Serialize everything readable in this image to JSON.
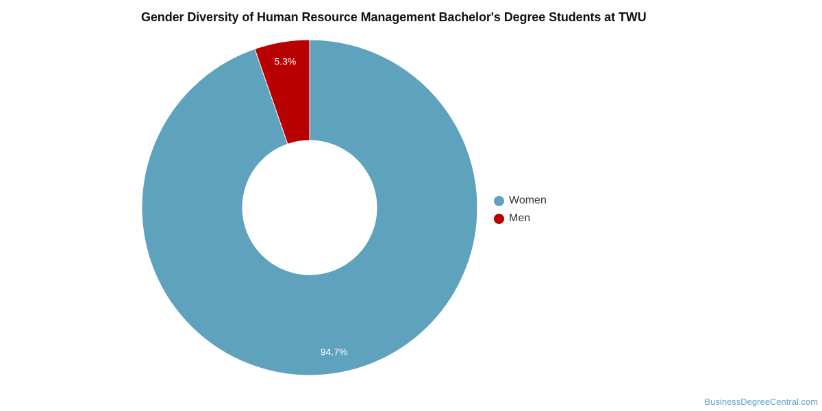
{
  "chart_data": {
    "type": "pie",
    "title": "Gender Diversity of Human Resource Management Bachelor's Degree Students at TWU",
    "donut": true,
    "legend_position": "right",
    "slices": [
      {
        "label": "Women",
        "value": 94.7,
        "display": "94.7%",
        "color": "#5ea2be"
      },
      {
        "label": "Men",
        "value": 5.3,
        "display": "5.3%",
        "color": "#b80000"
      }
    ]
  },
  "watermark": "BusinessDegreeCentral.com"
}
